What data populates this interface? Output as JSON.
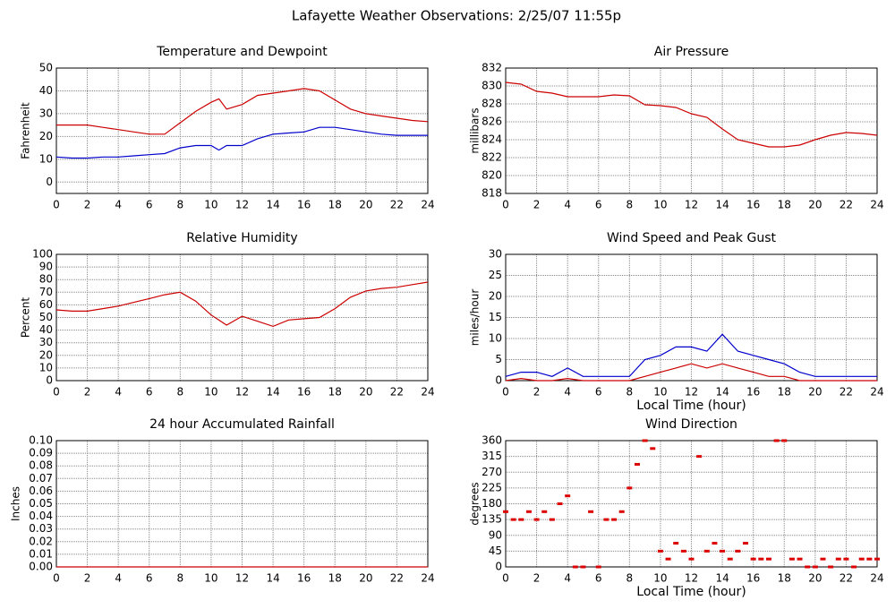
{
  "title": "Lafayette Weather Observations: 2/25/07 11:55p",
  "chart_data": [
    {
      "type": "line",
      "title": "Temperature and Dewpoint",
      "ylabel": "Fahrenheit",
      "x": [
        0,
        1,
        2,
        3,
        4,
        5,
        6,
        7,
        8,
        9,
        10,
        10.5,
        11,
        12,
        13,
        14,
        15,
        16,
        17,
        18,
        19,
        20,
        21,
        22,
        23,
        24
      ],
      "series": [
        {
          "color": "#cc0000",
          "values": [
            25,
            25,
            25,
            24,
            23,
            22,
            21,
            21,
            26,
            31,
            35,
            36.5,
            32,
            34,
            38,
            39,
            40,
            41,
            40,
            36,
            32,
            30,
            29,
            28,
            27,
            26.5
          ]
        },
        {
          "color": "#0000cc",
          "values": [
            11,
            10.5,
            10.5,
            11,
            11,
            11.5,
            12,
            12.5,
            15,
            16,
            16,
            14,
            16,
            16,
            19,
            21,
            21.5,
            22,
            24,
            24,
            23,
            22,
            21,
            20.5,
            20.5,
            20.5
          ]
        }
      ],
      "xlim": [
        0,
        24
      ],
      "xticks": [
        0,
        2,
        4,
        6,
        8,
        10,
        12,
        14,
        16,
        18,
        20,
        22,
        24
      ],
      "ylim": [
        -5,
        50
      ],
      "yticks": [
        0,
        10,
        20,
        30,
        40,
        50
      ],
      "grid": true
    },
    {
      "type": "line",
      "title": "Air Pressure",
      "ylabel": "millibars",
      "x": [
        0,
        1,
        2,
        3,
        4,
        5,
        6,
        7,
        8,
        9,
        10,
        11,
        12,
        13,
        14,
        15,
        16,
        17,
        18,
        19,
        20,
        21,
        22,
        23,
        24
      ],
      "series": [
        {
          "color": "#cc0000",
          "values": [
            830.4,
            830.2,
            829.4,
            829.2,
            828.8,
            828.8,
            828.8,
            829,
            828.9,
            827.9,
            827.8,
            827.6,
            826.9,
            826.5,
            825.2,
            824,
            823.6,
            823.2,
            823.2,
            823.4,
            824,
            824.5,
            824.8,
            824.7,
            824.5
          ]
        }
      ],
      "xlim": [
        0,
        24
      ],
      "xticks": [
        0,
        2,
        4,
        6,
        8,
        10,
        12,
        14,
        16,
        18,
        20,
        22,
        24
      ],
      "ylim": [
        818,
        832
      ],
      "yticks": [
        818,
        820,
        822,
        824,
        826,
        828,
        830,
        832
      ],
      "grid": true
    },
    {
      "type": "line",
      "title": "Relative Humidity",
      "ylabel": "Percent",
      "x": [
        0,
        1,
        2,
        3,
        4,
        5,
        6,
        7,
        8,
        9,
        10,
        11,
        12,
        13,
        14,
        15,
        16,
        17,
        18,
        19,
        20,
        21,
        22,
        23,
        24
      ],
      "series": [
        {
          "color": "#cc0000",
          "values": [
            56,
            55,
            55,
            57,
            59,
            62,
            65,
            68,
            70,
            63,
            52,
            44,
            51,
            47,
            43,
            48,
            49,
            50,
            57,
            66,
            71,
            73,
            74,
            76,
            78
          ]
        }
      ],
      "xlim": [
        0,
        24
      ],
      "xticks": [
        0,
        2,
        4,
        6,
        8,
        10,
        12,
        14,
        16,
        18,
        20,
        22,
        24
      ],
      "ylim": [
        0,
        100
      ],
      "yticks": [
        0,
        10,
        20,
        30,
        40,
        50,
        60,
        70,
        80,
        90,
        100
      ],
      "grid": true
    },
    {
      "type": "line",
      "title": "Wind Speed and Peak Gust",
      "ylabel": "miles/hour",
      "xlabel": "Local Time (hour)",
      "x": [
        0,
        1,
        2,
        3,
        4,
        5,
        6,
        7,
        8,
        9,
        10,
        11,
        12,
        13,
        14,
        15,
        16,
        17,
        18,
        19,
        20,
        21,
        22,
        23,
        24
      ],
      "series": [
        {
          "color": "#0000cc",
          "values": [
            1,
            2,
            2,
            1,
            3,
            1,
            1,
            1,
            1,
            5,
            6,
            8,
            8,
            7,
            11,
            7,
            6,
            5,
            4,
            2,
            1,
            1,
            1,
            1,
            1
          ]
        },
        {
          "color": "#cc0000",
          "values": [
            0,
            0.5,
            0,
            0,
            0.5,
            0,
            0,
            0,
            0,
            1,
            2,
            3,
            4,
            3,
            4,
            3,
            2,
            1,
            1,
            0,
            0,
            0,
            0,
            0,
            0
          ]
        }
      ],
      "xlim": [
        0,
        24
      ],
      "xticks": [
        0,
        2,
        4,
        6,
        8,
        10,
        12,
        14,
        16,
        18,
        20,
        22,
        24
      ],
      "ylim": [
        0,
        30
      ],
      "yticks": [
        0,
        5,
        10,
        15,
        20,
        25,
        30
      ],
      "grid": true
    },
    {
      "type": "line",
      "title": "24 hour Accumulated Rainfall",
      "ylabel": "Inches",
      "x": [
        0,
        1,
        2,
        3,
        4,
        5,
        6,
        7,
        8,
        9,
        10,
        11,
        12,
        13,
        14,
        15,
        16,
        17,
        18,
        19,
        20,
        21,
        22,
        23,
        24
      ],
      "series": [
        {
          "color": "#cc0000",
          "values": [
            0,
            0,
            0,
            0,
            0,
            0,
            0,
            0,
            0,
            0,
            0,
            0,
            0,
            0,
            0,
            0,
            0,
            0,
            0,
            0,
            0,
            0,
            0,
            0,
            0
          ]
        }
      ],
      "xlim": [
        0,
        24
      ],
      "xticks": [
        0,
        2,
        4,
        6,
        8,
        10,
        12,
        14,
        16,
        18,
        20,
        22,
        24
      ],
      "ylim": [
        0,
        0.1
      ],
      "yticks": [
        {
          "value": 0,
          "label": "0.00"
        },
        0.01,
        0.02,
        0.03,
        0.04,
        0.05,
        0.06,
        0.07,
        0.08,
        0.09,
        {
          "value": 0.1,
          "label": "0.10"
        }
      ],
      "grid": true
    },
    {
      "type": "scatter",
      "title": "Wind Direction",
      "ylabel": "degrees",
      "xlabel": "Local Time (hour)",
      "x": [
        0,
        0.5,
        1,
        1.5,
        2,
        2.5,
        3,
        3.5,
        4,
        4.5,
        5,
        5.5,
        6,
        6.5,
        7,
        7.5,
        8,
        8.5,
        9,
        9.5,
        10,
        10.5,
        11,
        11.5,
        12,
        12.5,
        13,
        13.5,
        14,
        14.5,
        15,
        15.5,
        16,
        16.5,
        17,
        17.5,
        18,
        18.5,
        19,
        19.5,
        20,
        20.5,
        21,
        21.5,
        22,
        22.5,
        23,
        23.5,
        24
      ],
      "series": [
        {
          "color": "#dd0000",
          "values": [
            157.5,
            135,
            135,
            157.5,
            135,
            157.5,
            135,
            180,
            202.5,
            0,
            0,
            157.5,
            0,
            135,
            135,
            157.5,
            225,
            292.5,
            360,
            337.5,
            45,
            22.5,
            67.5,
            45,
            22.5,
            315,
            45,
            67.5,
            45,
            22.5,
            45,
            67.5,
            22.5,
            22.5,
            22.5,
            360,
            360,
            22.5,
            22.5,
            0,
            0,
            22.5,
            0,
            22.5,
            22.5,
            0,
            22.5,
            22.5,
            22.5
          ]
        }
      ],
      "xlim": [
        0,
        24
      ],
      "xticks": [
        0,
        2,
        4,
        6,
        8,
        10,
        12,
        14,
        16,
        18,
        20,
        22,
        24
      ],
      "ylim": [
        0,
        360
      ],
      "yticks": [
        0,
        45,
        90,
        135,
        180,
        225,
        270,
        315,
        360
      ],
      "grid": true
    }
  ]
}
